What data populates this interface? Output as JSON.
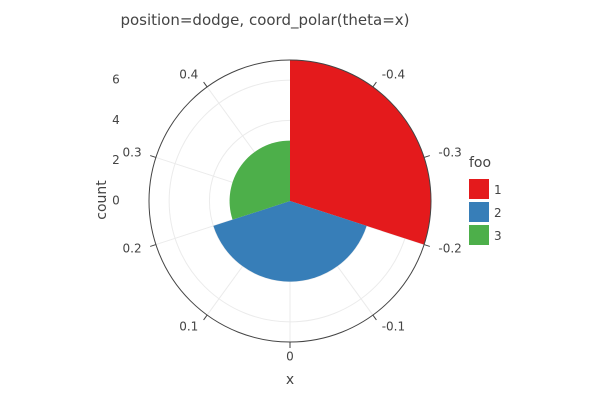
{
  "chart_data": {
    "type": "bar",
    "coord": "polar",
    "title": "position=dodge, coord_polar(theta=x)",
    "xlabel": "x",
    "ylabel": "count",
    "legend": {
      "title": "foo",
      "placement": "right",
      "items": [
        {
          "label": "1",
          "color": "#e41a1c"
        },
        {
          "label": "2",
          "color": "#377eb8"
        },
        {
          "label": "3",
          "color": "#4daf4a"
        }
      ]
    },
    "theta_ticks": [
      "0",
      "0.1",
      "0.2",
      "0.3",
      "0.4",
      "-0.4",
      "-0.3",
      "-0.2",
      "-0.1"
    ],
    "r_ticks": [
      "0",
      "2",
      "4",
      "6"
    ],
    "ylim": [
      0,
      7
    ],
    "series": [
      {
        "name": "1",
        "color": "#e41a1c",
        "theta_range": [
          -0.5,
          -0.2
        ],
        "value": 7
      },
      {
        "name": "2",
        "color": "#377eb8",
        "theta_range": [
          -0.2,
          0.2
        ],
        "value": 4
      },
      {
        "name": "3",
        "color": "#4daf4a",
        "theta_range": [
          0.2,
          0.5
        ],
        "value": 3
      }
    ],
    "grid": true
  }
}
